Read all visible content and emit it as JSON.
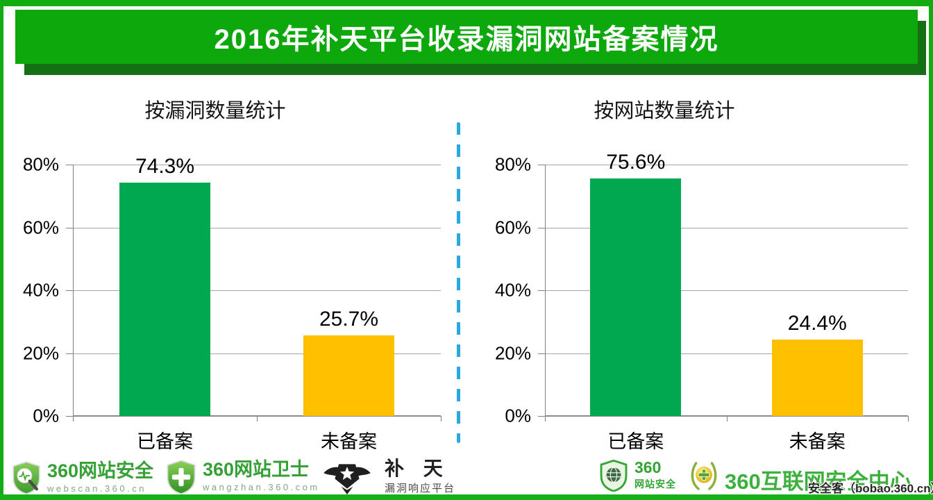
{
  "banner": {
    "title": "2016年补天平台收录漏洞网站备案情况"
  },
  "chart_data": [
    {
      "type": "bar",
      "title": "按漏洞数量统计",
      "categories": [
        "已备案",
        "未备案"
      ],
      "values": [
        74.3,
        25.7
      ],
      "value_labels": [
        "74.3%",
        "25.7%"
      ],
      "bar_colors": [
        "#00A850",
        "#FFC000"
      ],
      "ylim": [
        0,
        80
      ],
      "yticks": [
        "0%",
        "20%",
        "40%",
        "60%",
        "80%"
      ],
      "grid": true,
      "legend": false
    },
    {
      "type": "bar",
      "title": "按网站数量统计",
      "categories": [
        "已备案",
        "未备案"
      ],
      "values": [
        75.6,
        24.4
      ],
      "value_labels": [
        "75.6%",
        "24.4%"
      ],
      "bar_colors": [
        "#00A850",
        "#FFC000"
      ],
      "ylim": [
        0,
        80
      ],
      "yticks": [
        "0%",
        "20%",
        "40%",
        "60%",
        "80%"
      ],
      "grid": true,
      "legend": false
    }
  ],
  "footer": {
    "logos": [
      {
        "name": "360网站安全",
        "sub": "webscan.360.cn"
      },
      {
        "name": "360网站卫士",
        "sub": "wangzhan.360.com"
      },
      {
        "name": "补 天",
        "sub": "漏洞响应平台"
      },
      {
        "name": "360",
        "sub": "网站安全"
      },
      {
        "name": "360互联网安全中心"
      }
    ],
    "watermark": "安全客（bobao.360.cn）"
  },
  "colors": {
    "banner_green": "#0CA80C",
    "banner_shadow": "#157015",
    "border_green": "#12AB12",
    "bar_green": "#00A850",
    "bar_yellow": "#FFC000",
    "divider_blue": "#29A9E1",
    "gridline_gray": "#A6A6A6"
  }
}
